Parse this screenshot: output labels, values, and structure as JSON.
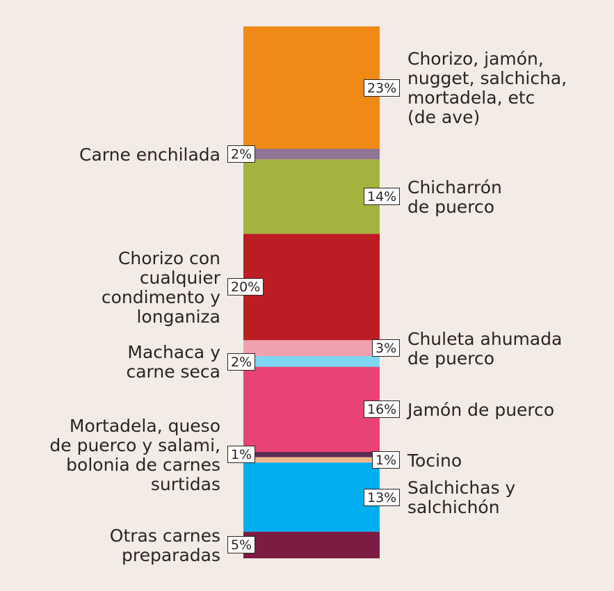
{
  "chart_data": {
    "type": "bar",
    "stacked": true,
    "orientation": "vertical",
    "unit": "%",
    "segments": [
      {
        "category": "Chorizo, jamón,\nnugget, salchicha,\nmortadela, etc\n(de ave)",
        "value": 23,
        "label": "23%",
        "color": "#f08a16",
        "label_side": "right"
      },
      {
        "category": "Carne enchilada",
        "value": 2,
        "label": "2%",
        "color": "#8f7593",
        "label_side": "left"
      },
      {
        "category": "Chicharrón\nde puerco",
        "value": 14,
        "label": "14%",
        "color": "#a4b23e",
        "label_side": "right"
      },
      {
        "category": "Chorizo con\ncualquier\ncondimento y\nlonganiza",
        "value": 20,
        "label": "20%",
        "color": "#bc1c24",
        "label_side": "left"
      },
      {
        "category": "Chuleta ahumada\nde puerco",
        "value": 3,
        "label": "3%",
        "color": "#f0a1b0",
        "label_side": "right"
      },
      {
        "category": "Machaca y\ncarne seca",
        "value": 2,
        "label": "2%",
        "color": "#7dd5f2",
        "label_side": "left"
      },
      {
        "category": "Jamón de puerco",
        "value": 16,
        "label": "16%",
        "color": "#e84276",
        "label_side": "right"
      },
      {
        "category": "Mortadela, queso\nde puerco y salami,\nbolonia de carnes\nsurtidas",
        "value": 1,
        "label": "1%",
        "color": "#5a2d55",
        "label_side": "left"
      },
      {
        "category": "Tocino",
        "value": 1,
        "label": "1%",
        "color": "#f3b788",
        "label_side": "right"
      },
      {
        "category": "Salchichas y\nsalchichón",
        "value": 13,
        "label": "13%",
        "color": "#00aeef",
        "label_side": "right"
      },
      {
        "category": "Otras carnes\npreparadas",
        "value": 5,
        "label": "5%",
        "color": "#7d1c43",
        "label_side": "left"
      }
    ]
  }
}
